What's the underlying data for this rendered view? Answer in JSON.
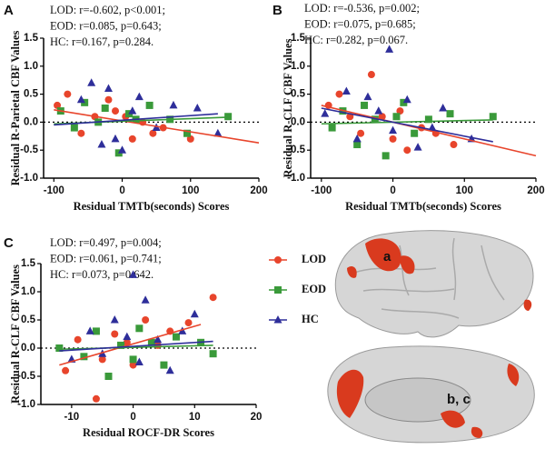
{
  "chart_data": [
    {
      "type": "scatter",
      "panel": "A",
      "stats": [
        "LOD: r=-0.602, p<0.001;",
        "EOD: r=0.085, p=0.643;",
        "HC: r=0.167, p=0.284."
      ],
      "x_label": "Residual TMTb(seconds) Scores",
      "y_label": "Residual R-Parietal CBF Values",
      "xlim": [
        -115,
        200
      ],
      "xticks": [
        -100,
        0,
        100,
        200
      ],
      "ylim": [
        -1,
        1.5
      ],
      "yticks": [
        {
          "value": -1,
          "label": "-1.0"
        },
        -0.5,
        {
          "value": 0,
          "label": "0.0"
        },
        0.5,
        {
          "value": 1,
          "label": "1.0"
        },
        1.5
      ],
      "reference_line": 0,
      "series": [
        {
          "color": "#e8452c",
          "marker": "circle",
          "x": [
            -95,
            -80,
            -60,
            -40,
            -20,
            -10,
            5,
            15,
            30,
            45,
            60,
            100
          ],
          "values": [
            0.3,
            0.5,
            -0.2,
            0.1,
            0.4,
            0.2,
            0.1,
            -0.3,
            0.0,
            -0.2,
            -0.1,
            -0.3
          ],
          "trend": {
            "x": [
              -100,
              200
            ],
            "y": [
              0.22,
              -0.37
            ]
          }
        },
        {
          "color": "#3a9a3a",
          "marker": "square",
          "x": [
            -90,
            -70,
            -55,
            -35,
            -25,
            -5,
            10,
            20,
            40,
            70,
            95,
            155
          ],
          "values": [
            0.2,
            -0.1,
            0.35,
            0.0,
            0.25,
            -0.55,
            0.15,
            0.05,
            0.3,
            0.05,
            -0.2,
            0.1
          ],
          "trend": {
            "x": [
              -100,
              160
            ],
            "y": [
              -0.03,
              0.09
            ]
          }
        },
        {
          "color": "#2e2e9a",
          "marker": "triangle",
          "x": [
            -60,
            -45,
            -30,
            -20,
            -10,
            0,
            15,
            25,
            50,
            75,
            110,
            140
          ],
          "values": [
            0.4,
            0.7,
            -0.4,
            0.6,
            -0.3,
            -0.5,
            0.2,
            0.45,
            -0.1,
            0.3,
            0.25,
            -0.2
          ],
          "trend": {
            "x": [
              -100,
              140
            ],
            "y": [
              -0.05,
              0.15
            ]
          }
        }
      ]
    },
    {
      "type": "scatter",
      "panel": "B",
      "stats": [
        "LOD: r=-0.536, p=0.002;",
        "EOD: r=0.075, p=0.685;",
        "HC: r=0.282, p=0.067."
      ],
      "x_label": "Residual TMTb(seconds) Scores",
      "y_label": "Residual R-CLF CBF Values",
      "xlim": [
        -115,
        200
      ],
      "xticks": [
        -100,
        0,
        100,
        200
      ],
      "ylim": [
        -1,
        1.5
      ],
      "yticks": [
        {
          "value": -1,
          "label": "-1.0"
        },
        -0.5,
        {
          "value": 0,
          "label": "0.0"
        },
        0.5,
        {
          "value": 1,
          "label": "1.0"
        },
        1.5
      ],
      "reference_line": 0,
      "series": [
        {
          "color": "#e8452c",
          "marker": "circle",
          "x": [
            -90,
            -75,
            -60,
            -45,
            -30,
            -15,
            0,
            10,
            20,
            40,
            60,
            85
          ],
          "values": [
            0.3,
            0.5,
            0.1,
            -0.2,
            0.85,
            0.1,
            -0.3,
            0.2,
            -0.5,
            -0.1,
            -0.2,
            -0.4
          ],
          "trend": {
            "x": [
              -100,
              200
            ],
            "y": [
              0.3,
              -0.6
            ]
          }
        },
        {
          "color": "#3a9a3a",
          "marker": "square",
          "x": [
            -85,
            -70,
            -50,
            -40,
            -25,
            -10,
            5,
            15,
            30,
            50,
            80,
            140
          ],
          "values": [
            -0.1,
            0.2,
            -0.4,
            0.3,
            0.05,
            -0.6,
            0.1,
            0.35,
            -0.2,
            0.05,
            0.15,
            0.1
          ],
          "trend": {
            "x": [
              -100,
              140
            ],
            "y": [
              -0.03,
              0.04
            ]
          }
        },
        {
          "color": "#2e2e9a",
          "marker": "triangle",
          "x": [
            -95,
            -65,
            -50,
            -35,
            -20,
            -5,
            0,
            20,
            35,
            55,
            70,
            110
          ],
          "values": [
            0.15,
            0.55,
            -0.3,
            0.45,
            0.2,
            1.3,
            -0.15,
            0.4,
            -0.45,
            -0.1,
            0.25,
            -0.3
          ],
          "trend": {
            "x": [
              -100,
              140
            ],
            "y": [
              0.25,
              -0.35
            ]
          }
        }
      ]
    },
    {
      "type": "scatter",
      "panel": "C",
      "stats": [
        "LOD: r=0.497, p=0.004;",
        "EOD: r=0.061, p=0.741;",
        "HC: r=0.073, p=0.642."
      ],
      "x_label": "Residual ROCF-DR Scores",
      "y_label": "Residual R-CLF CBF Values",
      "xlim": [
        -15,
        20
      ],
      "xticks": [
        -10,
        0,
        10,
        20
      ],
      "ylim": [
        -1,
        1.5
      ],
      "yticks": [
        {
          "value": -1,
          "label": "-1.0"
        },
        -0.5,
        {
          "value": 0,
          "label": "0.0"
        },
        0.5,
        {
          "value": 1,
          "label": "1.0"
        },
        1.5
      ],
      "reference_line": 0,
      "series": [
        {
          "color": "#e8452c",
          "marker": "circle",
          "x": [
            -11,
            -9,
            -6,
            -5,
            -3,
            -1,
            0,
            2,
            4,
            6,
            9,
            13
          ],
          "values": [
            -0.4,
            0.15,
            -0.9,
            -0.2,
            0.25,
            0.1,
            -0.3,
            0.5,
            0.05,
            0.3,
            0.45,
            0.9
          ],
          "trend": {
            "x": [
              -12,
              11
            ],
            "y": [
              -0.3,
              0.42
            ]
          }
        },
        {
          "color": "#3a9a3a",
          "marker": "square",
          "x": [
            -12,
            -8,
            -6,
            -4,
            -2,
            0,
            1,
            3,
            5,
            7,
            11,
            13
          ],
          "values": [
            0.0,
            -0.15,
            0.3,
            -0.5,
            0.05,
            -0.2,
            0.35,
            0.1,
            -0.3,
            0.2,
            0.1,
            -0.1
          ],
          "trend": {
            "x": [
              -12,
              13
            ],
            "y": [
              -0.02,
              0.05
            ]
          }
        },
        {
          "color": "#2e2e9a",
          "marker": "triangle",
          "x": [
            -10,
            -7,
            -5,
            -3,
            -1,
            0,
            1,
            2,
            4,
            6,
            8,
            10
          ],
          "values": [
            -0.2,
            0.3,
            -0.1,
            0.5,
            0.2,
            1.3,
            -0.25,
            0.85,
            0.15,
            -0.4,
            0.3,
            0.6
          ],
          "trend": {
            "x": [
              -12,
              13
            ],
            "y": [
              -0.05,
              0.12
            ]
          }
        }
      ]
    }
  ],
  "legend": [
    {
      "name": "LOD",
      "marker": "circle",
      "color": "#e8452c"
    },
    {
      "name": "EOD",
      "marker": "square",
      "color": "#3a9a3a"
    },
    {
      "name": "HC",
      "marker": "triangle",
      "color": "#2e2e9a"
    }
  ],
  "brain_labels": [
    "a",
    "b, c"
  ]
}
